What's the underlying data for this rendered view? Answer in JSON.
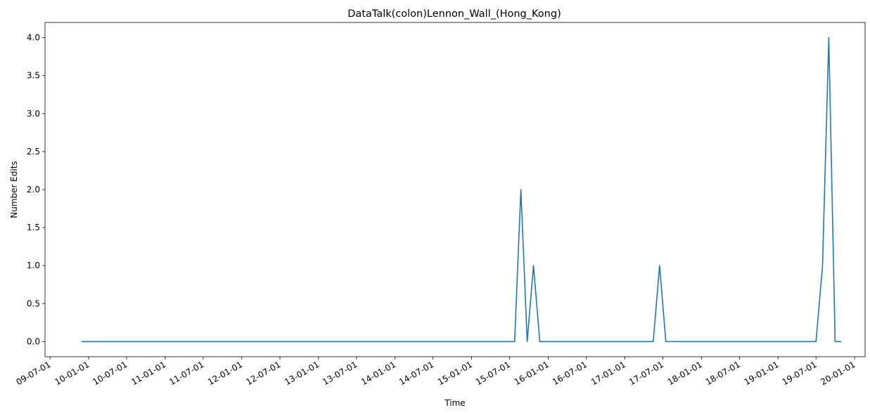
{
  "chart_data": {
    "type": "line",
    "title": "DataTalk(colon)Lennon_Wall_(Hong_Kong)",
    "xlabel": "Time",
    "ylabel": "Number Edits",
    "ylim": [
      -0.2,
      4.2
    ],
    "xlim": [
      "2009-06-07",
      "2020-02-20"
    ],
    "y_ticks": [
      0.0,
      0.5,
      1.0,
      1.5,
      2.0,
      2.5,
      3.0,
      3.5,
      4.0
    ],
    "y_tick_labels": [
      "0.0",
      "0.5",
      "1.0",
      "1.5",
      "2.0",
      "2.5",
      "3.0",
      "3.5",
      "4.0"
    ],
    "x_ticks": [
      "2009-07-01",
      "2010-01-01",
      "2010-07-01",
      "2011-01-01",
      "2011-07-01",
      "2012-01-01",
      "2012-07-01",
      "2013-01-01",
      "2013-07-01",
      "2014-01-01",
      "2014-07-01",
      "2015-01-01",
      "2015-07-01",
      "2016-01-01",
      "2016-07-01",
      "2017-01-01",
      "2017-07-01",
      "2018-01-01",
      "2018-07-01",
      "2019-01-01",
      "2019-07-01",
      "2020-01-01"
    ],
    "x_tick_labels": [
      "09-07-01",
      "10-01-01",
      "10-07-01",
      "11-01-01",
      "11-07-01",
      "12-01-01",
      "12-07-01",
      "13-01-01",
      "13-07-01",
      "14-01-01",
      "14-07-01",
      "15-01-01",
      "15-07-01",
      "16-01-01",
      "16-07-01",
      "17-01-01",
      "17-07-01",
      "18-01-01",
      "18-07-01",
      "19-01-01",
      "19-07-01",
      "20-01-01"
    ],
    "grid": false,
    "series": [
      {
        "color": "#1f77b4",
        "points": [
          [
            "2009-11-28",
            0
          ],
          [
            "2015-07-25",
            0
          ],
          [
            "2015-08-24",
            2
          ],
          [
            "2015-09-23",
            0
          ],
          [
            "2015-10-23",
            1
          ],
          [
            "2015-11-22",
            0
          ],
          [
            "2017-05-16",
            0
          ],
          [
            "2017-06-15",
            1
          ],
          [
            "2017-07-15",
            0
          ],
          [
            "2019-07-01",
            0
          ],
          [
            "2019-08-01",
            1
          ],
          [
            "2019-08-31",
            4
          ],
          [
            "2019-09-30",
            0
          ],
          [
            "2019-10-30",
            0
          ]
        ]
      }
    ]
  }
}
